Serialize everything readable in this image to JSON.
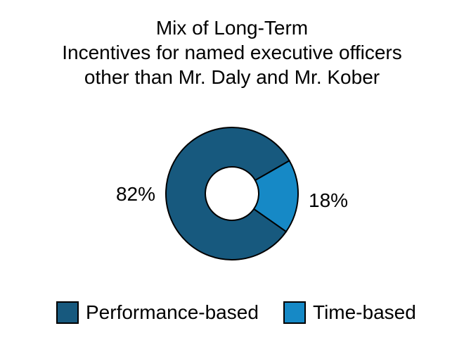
{
  "chart_data": {
    "type": "pie",
    "variant": "donut",
    "title": "Mix of Long-Term\nIncentives for named executive officers\nother than Mr. Daly and Mr. Kober",
    "slices": [
      {
        "label": "Performance-based",
        "value": 82,
        "pct_label": "82%",
        "color": "#17597e"
      },
      {
        "label": "Time-based",
        "value": 18,
        "pct_label": "18%",
        "color": "#1689c6"
      }
    ],
    "start_angle_deg": 35,
    "outline_color": "#000000",
    "outline_width": 2,
    "hole_ratio": 0.4,
    "background": "#ffffff",
    "legend_position": "bottom",
    "grid": false
  }
}
